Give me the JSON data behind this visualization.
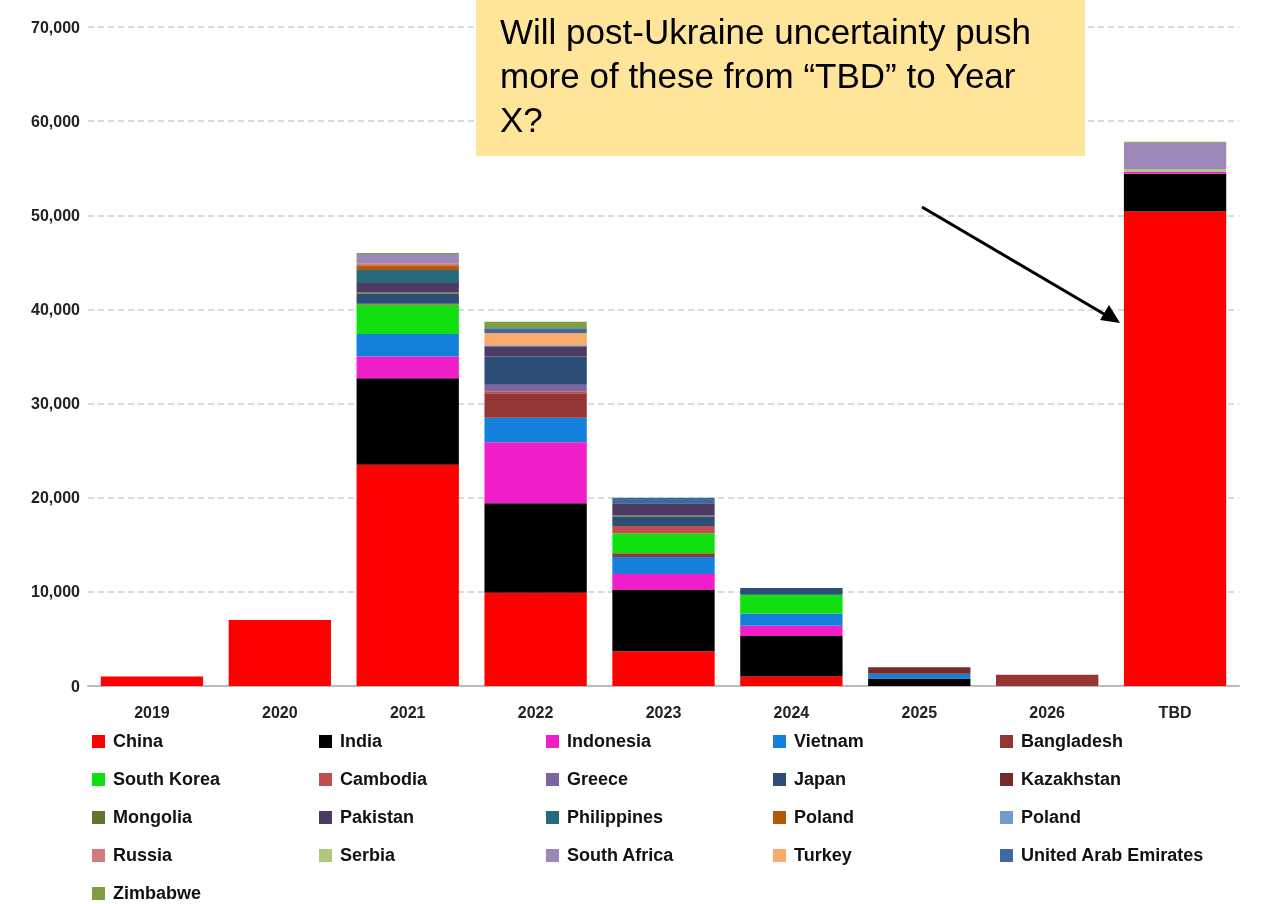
{
  "chart_data": {
    "type": "bar",
    "stacked": true,
    "categories": [
      "2019",
      "2020",
      "2021",
      "2022",
      "2023",
      "2024",
      "2025",
      "2026",
      "TBD"
    ],
    "ylim": [
      0,
      70000
    ],
    "yticks": [
      0,
      {
        "value": 10000,
        "label": "10,000"
      },
      {
        "value": 20000,
        "label": "20,000"
      },
      {
        "value": 30000,
        "label": "30,000"
      },
      {
        "value": 40000,
        "label": "40,000"
      },
      {
        "value": 50000,
        "label": "50,000"
      },
      {
        "value": 60000,
        "label": "60,000"
      },
      {
        "value": 70000,
        "label": "70,000"
      }
    ],
    "grid": "y",
    "legend": "bottom",
    "annotations": [
      "Will post-Ukraine uncertainty push more of these from “TBD” to Year X?"
    ],
    "series": [
      {
        "name": "China",
        "color": "#ff0000",
        "values": [
          1000,
          7000,
          23500,
          9900,
          3700,
          1000,
          null,
          null,
          50400
        ]
      },
      {
        "name": "India",
        "color": "#000000",
        "values": [
          null,
          null,
          9200,
          9500,
          6500,
          4300,
          800,
          null,
          4000
        ]
      },
      {
        "name": "Indonesia",
        "color": "#f01ec8",
        "values": [
          null,
          null,
          2300,
          6500,
          1700,
          1100,
          null,
          null,
          200
        ]
      },
      {
        "name": "Vietnam",
        "color": "#1580dc",
        "values": [
          null,
          null,
          2400,
          2600,
          1800,
          1300,
          500,
          null,
          null
        ]
      },
      {
        "name": "Bangladesh",
        "color": "#943634",
        "values": [
          null,
          null,
          null,
          2600,
          400,
          null,
          null,
          1200,
          null
        ]
      },
      {
        "name": "South Korea",
        "color": "#10e010",
        "values": [
          null,
          null,
          3100,
          null,
          2100,
          2000,
          null,
          null,
          null
        ]
      },
      {
        "name": "Cambodia",
        "color": "#c0504d",
        "values": [
          null,
          null,
          100,
          200,
          800,
          null,
          null,
          null,
          null
        ]
      },
      {
        "name": "Greece",
        "color": "#8064a2",
        "values": [
          null,
          null,
          null,
          700,
          null,
          null,
          null,
          null,
          null
        ]
      },
      {
        "name": "Japan",
        "color": "#2c4d75",
        "values": [
          null,
          null,
          1100,
          3000,
          1000,
          700,
          null,
          null,
          null
        ]
      },
      {
        "name": "Kazakhstan",
        "color": "#772c2a",
        "values": [
          null,
          null,
          null,
          null,
          null,
          null,
          700,
          null,
          null
        ]
      },
      {
        "name": "Mongolia",
        "color": "#5f7530",
        "values": [
          null,
          null,
          100,
          null,
          100,
          null,
          null,
          null,
          null
        ]
      },
      {
        "name": "Pakistan",
        "color": "#4d3b62",
        "values": [
          null,
          null,
          1000,
          1100,
          1300,
          null,
          null,
          null,
          null
        ]
      },
      {
        "name": "Philippines",
        "color": "#276a7c",
        "values": [
          null,
          null,
          1400,
          null,
          null,
          null,
          null,
          null,
          null
        ]
      },
      {
        "name": "Poland",
        "color": "#b65708",
        "values": [
          null,
          null,
          500,
          null,
          null,
          null,
          null,
          null,
          null
        ]
      },
      {
        "name": "Poland",
        "color": "#729aca",
        "values": [
          null,
          null,
          null,
          100,
          null,
          null,
          null,
          null,
          null
        ]
      },
      {
        "name": "Russia",
        "color": "#d07c7a",
        "values": [
          null,
          null,
          200,
          null,
          null,
          null,
          null,
          null,
          null
        ]
      },
      {
        "name": "Serbia",
        "color": "#afc97a",
        "values": [
          null,
          null,
          null,
          null,
          null,
          null,
          null,
          null,
          300
        ]
      },
      {
        "name": "South Africa",
        "color": "#9c87b8",
        "values": [
          null,
          null,
          1000,
          null,
          null,
          null,
          null,
          null,
          2800
        ]
      },
      {
        "name": "Turkey",
        "color": "#f9ab6b",
        "values": [
          null,
          null,
          null,
          1300,
          null,
          null,
          null,
          null,
          null
        ]
      },
      {
        "name": "United Arab Emirates",
        "color": "#3e6aa0",
        "values": [
          null,
          null,
          null,
          500,
          600,
          null,
          null,
          null,
          null
        ]
      },
      {
        "name": "Zimbabwe",
        "color": "#7f9e3f",
        "values": [
          null,
          null,
          100,
          700,
          null,
          null,
          null,
          null,
          100
        ]
      }
    ]
  }
}
